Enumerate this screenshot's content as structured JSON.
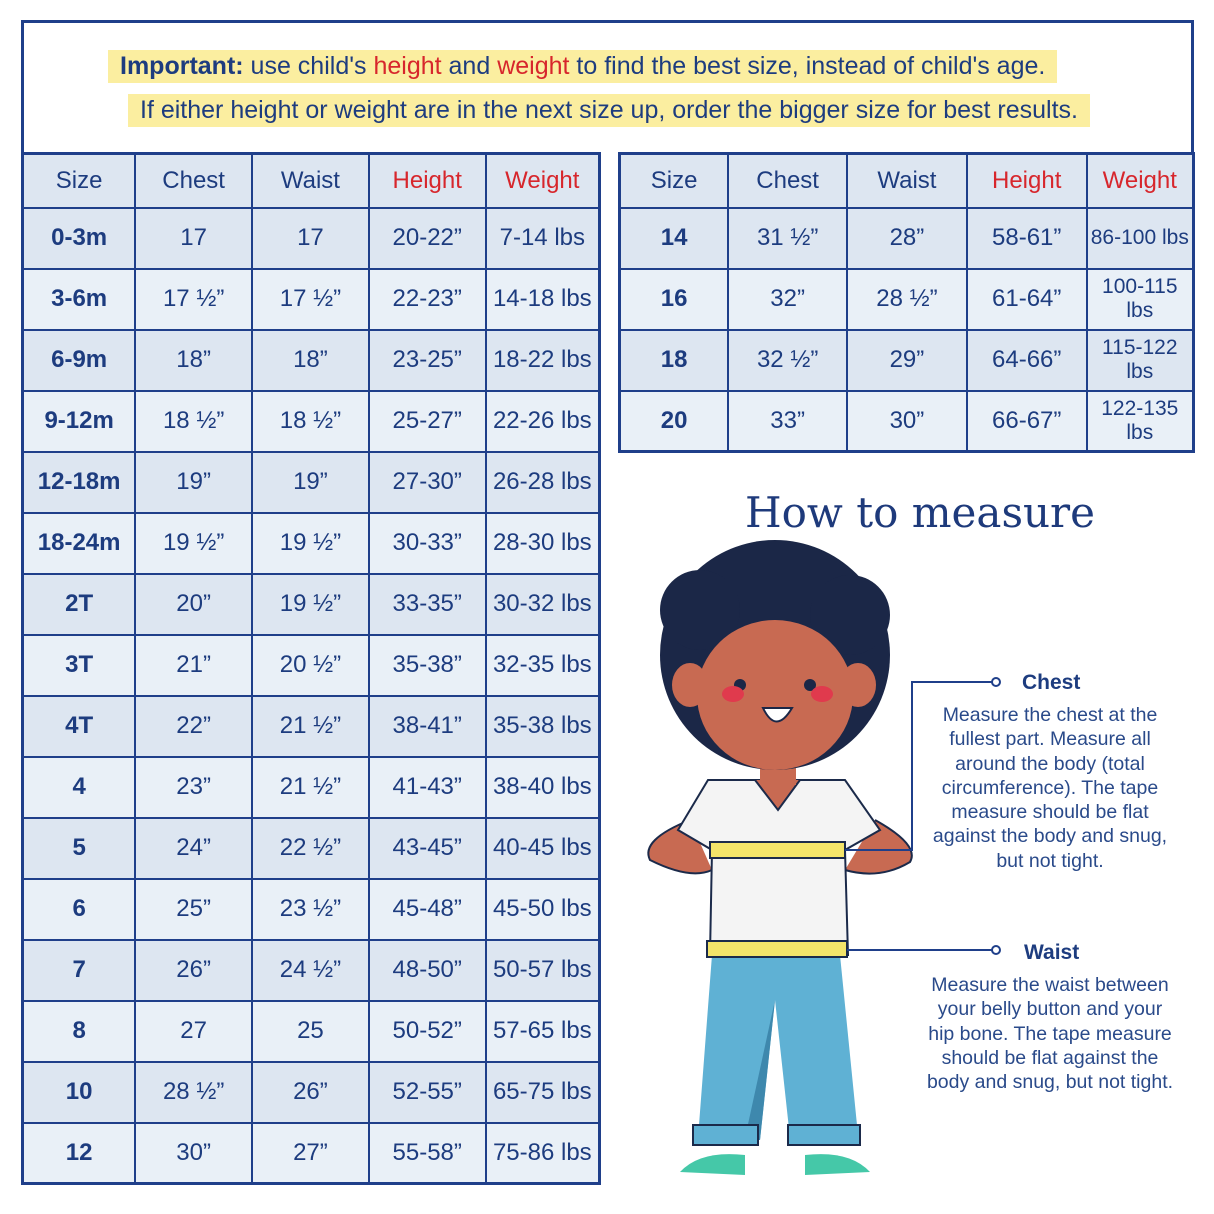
{
  "notice": {
    "line1": {
      "bold": "Important:",
      "t1": " use child's ",
      "h": "height",
      "t2": " and ",
      "w": "weight",
      "t3": " to find the best size, instead of child's age."
    },
    "line2": "If either height or weight are in the next size up, order the bigger size for best results."
  },
  "headers": [
    "Size",
    "Chest",
    "Waist",
    "Height",
    "Weight"
  ],
  "left_rows": [
    [
      "0-3m",
      "17",
      "17",
      "20-22”",
      "7-14 lbs"
    ],
    [
      "3-6m",
      "17 ½”",
      "17 ½”",
      "22-23”",
      "14-18 lbs"
    ],
    [
      "6-9m",
      "18”",
      "18”",
      "23-25”",
      "18-22 lbs"
    ],
    [
      "9-12m",
      "18 ½”",
      "18 ½”",
      "25-27”",
      "22-26 lbs"
    ],
    [
      "12-18m",
      "19”",
      "19”",
      "27-30”",
      "26-28 lbs"
    ],
    [
      "18-24m",
      "19 ½”",
      "19 ½”",
      "30-33”",
      "28-30 lbs"
    ],
    [
      "2T",
      "20”",
      "19 ½”",
      "33-35”",
      "30-32 lbs"
    ],
    [
      "3T",
      "21”",
      "20 ½”",
      "35-38”",
      "32-35 lbs"
    ],
    [
      "4T",
      "22”",
      "21 ½”",
      "38-41”",
      "35-38 lbs"
    ],
    [
      "4",
      "23”",
      "21 ½”",
      "41-43”",
      "38-40 lbs"
    ],
    [
      "5",
      "24”",
      "22 ½”",
      "43-45”",
      "40-45 lbs"
    ],
    [
      "6",
      "25”",
      "23 ½”",
      "45-48”",
      "45-50 lbs"
    ],
    [
      "7",
      "26”",
      "24 ½”",
      "48-50”",
      "50-57 lbs"
    ],
    [
      "8",
      "27",
      "25",
      "50-52”",
      "57-65 lbs"
    ],
    [
      "10",
      "28 ½”",
      "26”",
      "52-55”",
      "65-75 lbs"
    ],
    [
      "12",
      "30”",
      "27”",
      "55-58”",
      "75-86 lbs"
    ]
  ],
  "right_rows": [
    [
      "14",
      "31 ½”",
      "28”",
      "58-61”",
      "86-100 lbs"
    ],
    [
      "16",
      "32”",
      "28 ½”",
      "61-64”",
      "100-115 lbs"
    ],
    [
      "18",
      "32 ½”",
      "29”",
      "64-66”",
      "115-122 lbs"
    ],
    [
      "20",
      "33”",
      "30”",
      "66-67”",
      "122-135 lbs"
    ]
  ],
  "how": {
    "title": "How to measure",
    "chest_label": "Chest",
    "chest_desc": "Measure the chest at the fullest part. Measure all around the body (total circumference). The tape measure should be flat against the body and snug, but not tight.",
    "waist_label": "Waist",
    "waist_desc": "Measure the waist between your belly button and your hip bone. The tape measure should be flat against the body and snug, but not tight."
  },
  "colors": {
    "navy": "#1f3f8a",
    "red": "#d7262c",
    "highlight": "#fbeea0"
  }
}
